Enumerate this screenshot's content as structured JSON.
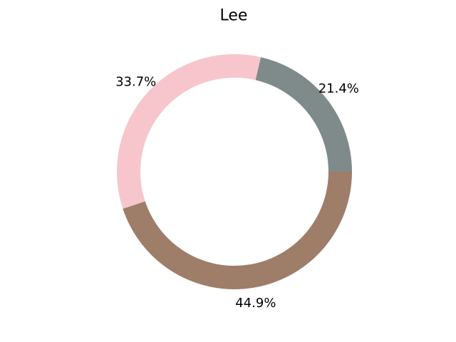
{
  "chart_data": {
    "type": "pie",
    "style": "donut",
    "title": "Lee",
    "legend": "none",
    "start_angle_deg": 0,
    "direction": "counterclockwise",
    "slices": [
      {
        "value": 21.4,
        "label": "21.4%",
        "color": "#7f8b8a"
      },
      {
        "value": 33.7,
        "label": "33.7%",
        "color": "#f7c6cc"
      },
      {
        "value": 44.9,
        "label": "44.9%",
        "color": "#9e7d69"
      }
    ]
  }
}
